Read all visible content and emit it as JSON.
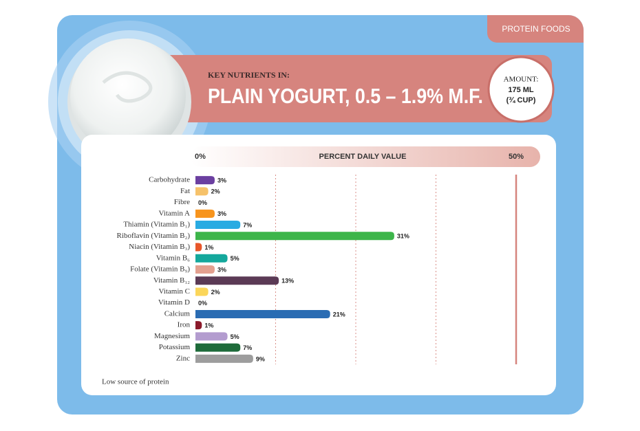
{
  "header": {
    "tag": "PROTEIN FOODS",
    "kicker": "KEY NUTRIENTS IN:",
    "title": "PLAIN YOGURT, 0.5 – 1.9% M.F.",
    "amount_label": "AMOUNT:",
    "amount_lines": [
      "175 ML",
      "(¾ CUP)"
    ]
  },
  "chart_data": {
    "type": "bar",
    "orientation": "horizontal",
    "x_label": "PERCENT DAILY VALUE",
    "categories": [
      "Carbohydrate",
      "Fat",
      "Fibre",
      "Vitamin A",
      "Thiamin (Vitamin B₁)",
      "Riboflavin (Vitamin B₂)",
      "Niacin (Vitamin B₃)",
      "Vitamin B₆",
      "Folate (Vitamin B₉)",
      "Vitamin B₁₂",
      "Vitamin C",
      "Vitamin D",
      "Calcium",
      "Iron",
      "Magnesium",
      "Potassium",
      "Zinc"
    ],
    "values": [
      3,
      2,
      0,
      3,
      7,
      31,
      1,
      5,
      3,
      13,
      2,
      0,
      21,
      1,
      5,
      7,
      9
    ],
    "value_labels": [
      "3%",
      "2%",
      "0%",
      "3%",
      "7%",
      "31%",
      "1%",
      "5%",
      "3%",
      "13%",
      "2%",
      "0%",
      "21%",
      "1%",
      "5%",
      "7%",
      "9%"
    ],
    "colors": [
      "#6b3fa0",
      "#f6c26a",
      "#cccccc",
      "#f7941d",
      "#29abe2",
      "#3db54a",
      "#e8572a",
      "#14a89c",
      "#e3a08f",
      "#5b3a55",
      "#fbd65a",
      "#cccccc",
      "#2a6cb3",
      "#8b1a2b",
      "#b39ccf",
      "#1e6b3a",
      "#9d9d9d"
    ],
    "xlim": [
      0,
      50
    ],
    "xticks": [
      {
        "value": 0,
        "label": "0%"
      },
      {
        "value": 50,
        "label": "50%"
      }
    ],
    "xgrid": [
      12.5,
      25,
      37.5
    ],
    "note": "Low source of protein"
  }
}
